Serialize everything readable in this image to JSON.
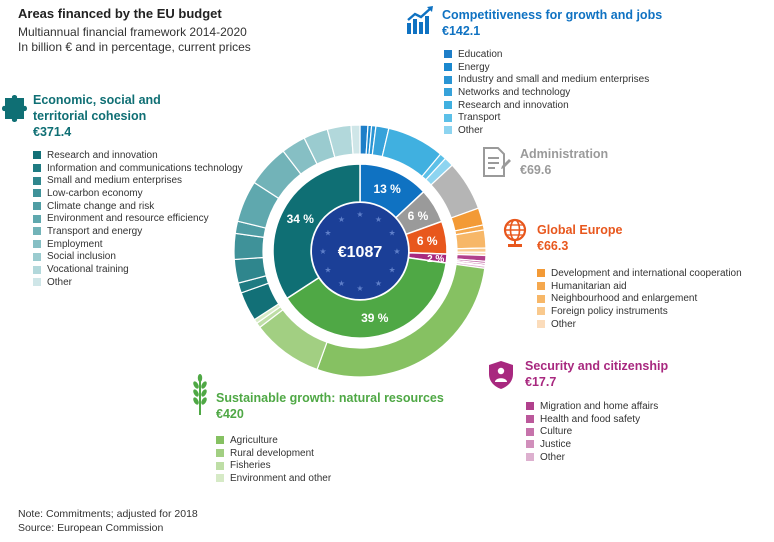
{
  "header": {
    "title": "Areas financed by the EU budget",
    "subtitle1": "Multiannual financial framework 2014-2020",
    "subtitle2": "In billion € and in percentage, current prices"
  },
  "chart_data": {
    "type": "pie",
    "center_label": "€1087",
    "categories": [
      {
        "key": "competitiveness",
        "name": "Competitiveness for growth and jobs",
        "total": "€142.1",
        "value": 142.1,
        "percent_label": "13 %",
        "color": "#0f72c2",
        "icon": "growth-chart-icon",
        "items": [
          {
            "label": "Education",
            "color": "#1e7ec8",
            "value": 11.0
          },
          {
            "label": "Energy",
            "color": "#1a88cf",
            "value": 5.0
          },
          {
            "label": "Industry and small and medium enterprises",
            "color": "#2a95d4",
            "value": 6.0
          },
          {
            "label": "Networks and technology",
            "color": "#36a2da",
            "value": 18.0
          },
          {
            "label": "Research and innovation",
            "color": "#40b0e0",
            "value": 80.0
          },
          {
            "label": "Transport",
            "color": "#5cc0e8",
            "value": 9.0
          },
          {
            "label": "Other",
            "color": "#8dd4f0",
            "value": 13.1
          }
        ]
      },
      {
        "key": "administration",
        "name": "Administration",
        "total": "€69.6",
        "value": 69.6,
        "percent_label": "6 %",
        "color": "#9a9a9a",
        "icon": "document-icon",
        "items": [
          {
            "label": "",
            "color": "#b5b5b5",
            "value": 69.6
          }
        ]
      },
      {
        "key": "global_europe",
        "name": "Global Europe",
        "total": "€66.3",
        "value": 66.3,
        "percent_label": "6 %",
        "color": "#e8571d",
        "icon": "globe-icon",
        "items": [
          {
            "label": "Development and international cooperation",
            "color": "#f39a36",
            "value": 24.0
          },
          {
            "label": "Humanitarian aid",
            "color": "#f5a84e",
            "value": 7.0
          },
          {
            "label": "Neighbourhood and enlargement",
            "color": "#f7b768",
            "value": 25.0
          },
          {
            "label": "Foreign policy instruments",
            "color": "#f9c98d",
            "value": 6.0
          },
          {
            "label": "Other",
            "color": "#fbdcbb",
            "value": 4.3
          }
        ]
      },
      {
        "key": "security",
        "name": "Security and citizenship",
        "total": "€17.7",
        "value": 17.7,
        "percent_label": "2 %",
        "color": "#a8287f",
        "icon": "security-people-icon",
        "items": [
          {
            "label": "Migration and home affairs",
            "color": "#b1408d",
            "value": 8.0
          },
          {
            "label": "Health and food safety",
            "color": "#bb589b",
            "value": 3.0
          },
          {
            "label": "Culture",
            "color": "#c673ab",
            "value": 2.5
          },
          {
            "label": "Justice",
            "color": "#d18fbb",
            "value": 1.2
          },
          {
            "label": "Other",
            "color": "#ddb0cf",
            "value": 3.0
          }
        ]
      },
      {
        "key": "sustainable",
        "name": "Sustainable growth: natural resources",
        "total": "€420",
        "value": 420,
        "percent_label": "39 %",
        "color": "#4fa845",
        "icon": "wheat-icon",
        "items": [
          {
            "label": "Agriculture",
            "color": "#86c162",
            "value": 308.0
          },
          {
            "label": "Rural development",
            "color": "#a2cf82",
            "value": 99.0
          },
          {
            "label": "Fisheries",
            "color": "#bedea6",
            "value": 7.0
          },
          {
            "label": "Environment and other",
            "color": "#d6eac6",
            "value": 6.0
          }
        ]
      },
      {
        "key": "cohesion",
        "name": "Economic, social and territorial cohesion",
        "name_line1": "Economic, social and",
        "name_line2": "territorial cohesion",
        "total": "€371.4",
        "value": 371.4,
        "percent_label": "34 %",
        "color": "#0f6f74",
        "icon": "puzzle-icon",
        "items": [
          {
            "label": "Research  and innovation",
            "color": "#127077",
            "value": 41.0
          },
          {
            "label": "Information and communications technology",
            "color": "#1f7b82",
            "value": 14.0
          },
          {
            "label": "Small and medium enterprises",
            "color": "#2f868d",
            "value": 33.0
          },
          {
            "label": "Low-carbon economy",
            "color": "#3f9299",
            "value": 36.0
          },
          {
            "label": "Climate change and risk",
            "color": "#4f9da4",
            "value": 17.0
          },
          {
            "label": "Environment and resource efficiency",
            "color": "#5fa8ae",
            "value": 58.0
          },
          {
            "label": "Transport and energy",
            "color": "#72b3b8",
            "value": 59.0
          },
          {
            "label": "Employment",
            "color": "#86bfc4",
            "value": 34.0
          },
          {
            "label": "Social inclusion",
            "color": "#9acbcf",
            "value": 34.0
          },
          {
            "label": "Vocational training",
            "color": "#b2d8db",
            "value": 33.0
          },
          {
            "label": "Other",
            "color": "#cfe6e8",
            "value": 12.4
          }
        ]
      }
    ]
  },
  "footer": {
    "note": "Note: Commitments; adjusted for 2018",
    "source": "Source: European Commission"
  }
}
